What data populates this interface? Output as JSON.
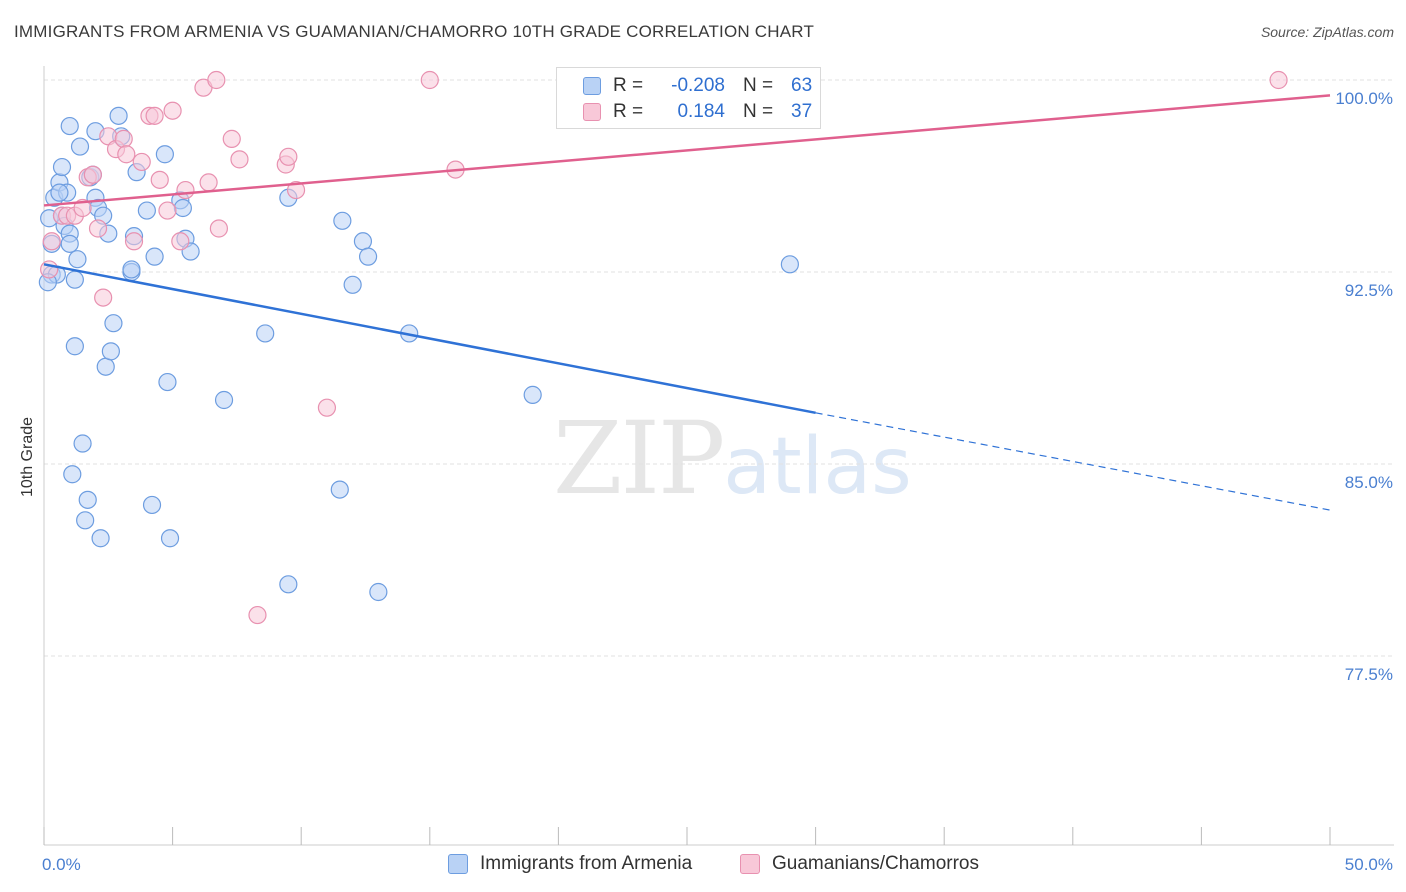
{
  "header": {
    "title": "IMMIGRANTS FROM ARMENIA VS GUAMANIAN/CHAMORRO 10TH GRADE CORRELATION CHART",
    "source": "Source: ZipAtlas.com"
  },
  "legend_top": {
    "rows": [
      {
        "r_label": "R =",
        "r_value": "-0.208",
        "n_label": "N =",
        "n_value": "63"
      },
      {
        "r_label": "R =",
        "r_value": "0.184",
        "n_label": "N =",
        "n_value": "37"
      }
    ]
  },
  "legend_bottom": {
    "items": [
      {
        "label": "Immigrants from Armenia"
      },
      {
        "label": "Guamanians/Chamorros"
      }
    ]
  },
  "watermark": {
    "zip": "ZIP",
    "atlas": "atlas"
  },
  "colors": {
    "blue_fill": "#b9d2f5",
    "blue_stroke": "#6d9de0",
    "blue_line": "#2f72d6",
    "pink_fill": "#f8c8d8",
    "pink_stroke": "#e891b0",
    "pink_line": "#e0608e",
    "tick_label": "#4a7fd0",
    "grid": "#e2e2e2"
  },
  "chart_data": {
    "type": "scatter",
    "title": "IMMIGRANTS FROM ARMENIA VS GUAMANIAN/CHAMORRO 10TH GRADE CORRELATION CHART",
    "xlabel": "",
    "ylabel": "10th Grade",
    "xlim": [
      0,
      50
    ],
    "ylim": [
      70,
      100.6
    ],
    "x_tick_labels": [
      {
        "value": 0,
        "label": "0.0%"
      },
      {
        "value": 50,
        "label": "50.0%"
      }
    ],
    "y_tick_labels": [
      {
        "value": 100,
        "label": "100.0%"
      },
      {
        "value": 92.5,
        "label": "92.5%"
      },
      {
        "value": 85,
        "label": "85.0%"
      },
      {
        "value": 77.5,
        "label": "77.5%"
      }
    ],
    "series": [
      {
        "name": "Immigrants from Armenia",
        "color": "#6d9de0",
        "points": [
          [
            0.2,
            94.6
          ],
          [
            0.3,
            93.6
          ],
          [
            0.3,
            92.4
          ],
          [
            0.4,
            95.4
          ],
          [
            0.5,
            92.4
          ],
          [
            0.6,
            96.0
          ],
          [
            0.7,
            94.7
          ],
          [
            0.7,
            96.6
          ],
          [
            0.8,
            94.3
          ],
          [
            0.9,
            95.6
          ],
          [
            1.0,
            94.0
          ],
          [
            1.0,
            98.2
          ],
          [
            1.1,
            84.6
          ],
          [
            1.2,
            89.6
          ],
          [
            1.2,
            92.2
          ],
          [
            1.3,
            93.0
          ],
          [
            1.4,
            97.4
          ],
          [
            1.5,
            85.8
          ],
          [
            1.6,
            82.8
          ],
          [
            1.7,
            83.6
          ],
          [
            1.8,
            96.2
          ],
          [
            2.0,
            98.0
          ],
          [
            2.0,
            95.4
          ],
          [
            2.1,
            95.0
          ],
          [
            2.2,
            82.1
          ],
          [
            2.3,
            94.7
          ],
          [
            2.4,
            88.8
          ],
          [
            2.5,
            94.0
          ],
          [
            2.6,
            89.4
          ],
          [
            2.7,
            90.5
          ],
          [
            2.9,
            98.6
          ],
          [
            3.0,
            97.8
          ],
          [
            3.4,
            92.5
          ],
          [
            3.5,
            93.9
          ],
          [
            3.6,
            96.4
          ],
          [
            4.0,
            94.9
          ],
          [
            4.2,
            83.4
          ],
          [
            4.3,
            93.1
          ],
          [
            4.7,
            97.1
          ],
          [
            4.8,
            88.2
          ],
          [
            4.9,
            82.1
          ],
          [
            5.3,
            95.3
          ],
          [
            5.4,
            95.0
          ],
          [
            5.5,
            93.8
          ],
          [
            5.7,
            93.3
          ],
          [
            7.0,
            87.5
          ],
          [
            8.6,
            90.1
          ],
          [
            9.5,
            80.3
          ],
          [
            9.5,
            95.4
          ],
          [
            11.5,
            84.0
          ],
          [
            11.6,
            94.5
          ],
          [
            12.0,
            92.0
          ],
          [
            12.4,
            93.7
          ],
          [
            12.6,
            93.1
          ],
          [
            13.0,
            80.0
          ],
          [
            14.2,
            90.1
          ],
          [
            19.0,
            87.7
          ],
          [
            29.0,
            92.8
          ],
          [
            0.15,
            92.1
          ],
          [
            0.6,
            95.6
          ],
          [
            1.9,
            96.3
          ],
          [
            3.4,
            92.6
          ],
          [
            1.0,
            93.6
          ]
        ]
      },
      {
        "name": "Guamanians/Chamorros",
        "color": "#e891b0",
        "points": [
          [
            0.2,
            92.6
          ],
          [
            0.3,
            93.7
          ],
          [
            0.7,
            94.7
          ],
          [
            0.9,
            94.7
          ],
          [
            1.2,
            94.7
          ],
          [
            1.5,
            95.0
          ],
          [
            1.7,
            96.2
          ],
          [
            1.9,
            96.3
          ],
          [
            2.1,
            94.2
          ],
          [
            2.3,
            91.5
          ],
          [
            2.5,
            97.8
          ],
          [
            2.8,
            97.3
          ],
          [
            3.1,
            97.7
          ],
          [
            3.2,
            97.1
          ],
          [
            3.5,
            93.7
          ],
          [
            3.8,
            96.8
          ],
          [
            4.1,
            98.6
          ],
          [
            4.3,
            98.6
          ],
          [
            4.5,
            96.1
          ],
          [
            4.8,
            94.9
          ],
          [
            5.0,
            98.8
          ],
          [
            5.3,
            93.7
          ],
          [
            5.5,
            95.7
          ],
          [
            6.2,
            99.7
          ],
          [
            6.4,
            96.0
          ],
          [
            6.7,
            100.0
          ],
          [
            6.8,
            94.2
          ],
          [
            7.3,
            97.7
          ],
          [
            7.6,
            96.9
          ],
          [
            8.3,
            79.1
          ],
          [
            9.4,
            96.7
          ],
          [
            9.5,
            97.0
          ],
          [
            9.8,
            95.7
          ],
          [
            11.0,
            87.2
          ],
          [
            15.0,
            100.0
          ],
          [
            16.0,
            96.5
          ],
          [
            48.0,
            100.0
          ]
        ]
      }
    ],
    "trendlines": [
      {
        "series": "Immigrants from Armenia",
        "x_start": 0,
        "y_start": 92.8,
        "x_solid_end": 30,
        "y_solid_end": 87.0,
        "x_end": 50,
        "y_end": 83.2,
        "style": "solid then dashed"
      },
      {
        "series": "Guamanians/Chamorros",
        "x_start": 0,
        "y_start": 95.1,
        "x_end": 50,
        "y_end": 99.4,
        "style": "solid"
      }
    ]
  }
}
